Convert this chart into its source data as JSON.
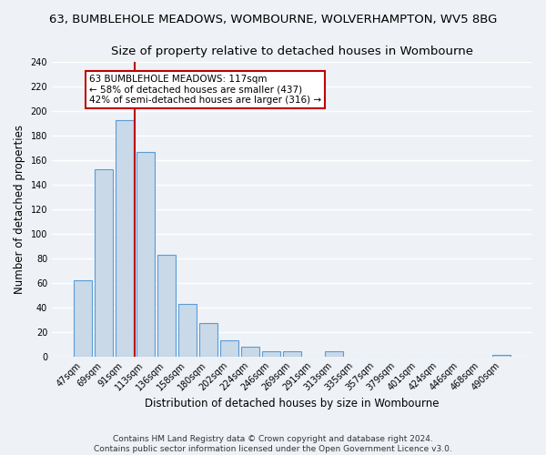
{
  "title": "63, BUMBLEHOLE MEADOWS, WOMBOURNE, WOLVERHAMPTON, WV5 8BG",
  "subtitle": "Size of property relative to detached houses in Wombourne",
  "xlabel": "Distribution of detached houses by size in Wombourne",
  "ylabel": "Number of detached properties",
  "bar_labels": [
    "47sqm",
    "69sqm",
    "91sqm",
    "113sqm",
    "136sqm",
    "158sqm",
    "180sqm",
    "202sqm",
    "224sqm",
    "246sqm",
    "269sqm",
    "291sqm",
    "313sqm",
    "335sqm",
    "357sqm",
    "379sqm",
    "401sqm",
    "424sqm",
    "446sqm",
    "468sqm",
    "490sqm"
  ],
  "bar_heights": [
    62,
    153,
    193,
    167,
    83,
    43,
    27,
    13,
    8,
    4,
    4,
    0,
    4,
    0,
    0,
    0,
    0,
    0,
    0,
    0,
    1
  ],
  "bar_color": "#c9d9e8",
  "bar_edge_color": "#5b9bd5",
  "ref_line_x": 2.5,
  "ref_line_color": "#c00000",
  "annotation_text": "63 BUMBLEHOLE MEADOWS: 117sqm\n← 58% of detached houses are smaller (437)\n42% of semi-detached houses are larger (316) →",
  "annotation_box_color": "white",
  "annotation_box_edge_color": "#c00000",
  "ylim": [
    0,
    240
  ],
  "yticks": [
    0,
    20,
    40,
    60,
    80,
    100,
    120,
    140,
    160,
    180,
    200,
    220,
    240
  ],
  "footnote1": "Contains HM Land Registry data © Crown copyright and database right 2024.",
  "footnote2": "Contains public sector information licensed under the Open Government Licence v3.0.",
  "background_color": "#eef2f7",
  "grid_color": "#ffffff",
  "title_fontsize": 9.5,
  "subtitle_fontsize": 9.5,
  "tick_fontsize": 7,
  "ylabel_fontsize": 8.5,
  "xlabel_fontsize": 8.5,
  "footnote_fontsize": 6.5
}
